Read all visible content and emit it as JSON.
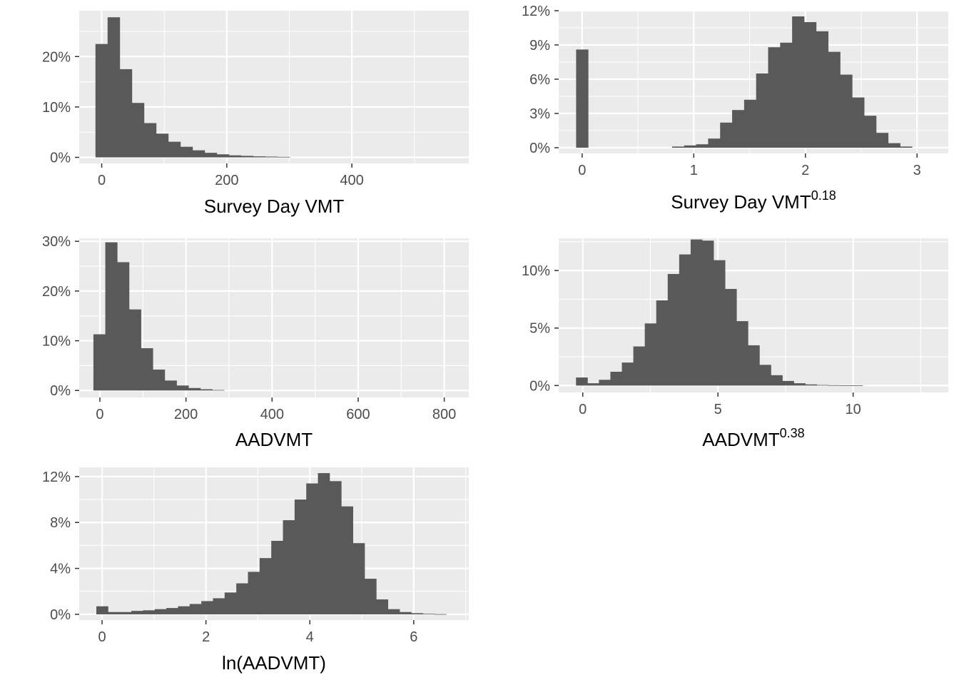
{
  "figure": {
    "panel_background": "#ebebeb",
    "grid_color": "#ffffff",
    "bar_color": "#595959",
    "tick_color": "#333333"
  },
  "chart_data": [
    {
      "type": "bar",
      "xlabel": "Survey Day VMT",
      "xlabel_sup": "",
      "xlim": [
        -36,
        587
      ],
      "ylim": [
        -0.012,
        0.291
      ],
      "xticks": [
        0,
        200,
        400
      ],
      "xtick_labels": [
        "0",
        "200",
        "400"
      ],
      "xminor": [
        100,
        300,
        500
      ],
      "yticks": [
        0,
        0.1,
        0.2
      ],
      "ytick_labels": [
        "0%",
        "10%",
        "20%"
      ],
      "yminor": [
        0.05,
        0.15,
        0.25
      ],
      "bins": {
        "start": -10,
        "width": 19.4,
        "values": [
          0.225,
          0.278,
          0.175,
          0.108,
          0.068,
          0.047,
          0.031,
          0.021,
          0.014,
          0.009,
          0.006,
          0.004,
          0.003,
          0.002,
          0.0015,
          0.001
        ]
      }
    },
    {
      "type": "bar",
      "xlabel": "Survey Day VMT",
      "xlabel_sup": "0.18",
      "xlim": [
        -0.21,
        3.28
      ],
      "ylim": [
        -0.005,
        0.12
      ],
      "xticks": [
        0,
        1,
        2,
        3
      ],
      "xtick_labels": [
        "0",
        "1",
        "2",
        "3"
      ],
      "xminor": [
        0.5,
        1.5,
        2.5
      ],
      "yticks": [
        0,
        0.03,
        0.06,
        0.09,
        0.12
      ],
      "ytick_labels": [
        "0%",
        "3%",
        "6%",
        "9%",
        "12%"
      ],
      "yminor": [
        0.015,
        0.045,
        0.075,
        0.105
      ],
      "bins": {
        "start": -0.054,
        "width": 0.1075,
        "values": [
          0.086,
          0,
          0,
          0,
          0,
          0,
          0,
          0,
          0.001,
          0.002,
          0.003,
          0.008,
          0.022,
          0.033,
          0.042,
          0.065,
          0.088,
          0.092,
          0.115,
          0.11,
          0.102,
          0.084,
          0.064,
          0.044,
          0.028,
          0.013,
          0.004,
          0.001
        ]
      }
    },
    {
      "type": "bar",
      "xlabel": "AADVMT",
      "xlabel_sup": "",
      "xlim": [
        -48,
        857
      ],
      "ylim": [
        -0.014,
        0.306
      ],
      "xticks": [
        0,
        200,
        400,
        600,
        800
      ],
      "xtick_labels": [
        "0",
        "200",
        "400",
        "600",
        "800"
      ],
      "xminor": [
        100,
        300,
        500,
        700
      ],
      "yticks": [
        0,
        0.1,
        0.2,
        0.3
      ],
      "ytick_labels": [
        "0%",
        "10%",
        "20%",
        "30%"
      ],
      "yminor": [
        0.05,
        0.15,
        0.25
      ],
      "bins": {
        "start": -15,
        "width": 27.6,
        "values": [
          0.113,
          0.298,
          0.258,
          0.163,
          0.085,
          0.042,
          0.02,
          0.01,
          0.005,
          0.0025,
          0.001
        ]
      }
    },
    {
      "type": "bar",
      "xlabel": "AADVMT",
      "xlabel_sup": "0.38",
      "xlim": [
        -0.89,
        13.52
      ],
      "ylim": [
        -0.006,
        0.128
      ],
      "xticks": [
        0,
        5,
        10
      ],
      "xtick_labels": [
        "0",
        "5",
        "10"
      ],
      "xminor": [
        2.5,
        7.5,
        12.5
      ],
      "yticks": [
        0,
        0.05,
        0.1
      ],
      "ytick_labels": [
        "0%",
        "5%",
        "10%"
      ],
      "yminor": [
        0.025,
        0.075,
        0.125
      ],
      "bins": {
        "start": -0.25,
        "width": 0.424,
        "values": [
          0.007,
          0.002,
          0.005,
          0.012,
          0.02,
          0.034,
          0.054,
          0.074,
          0.097,
          0.114,
          0.127,
          0.126,
          0.109,
          0.084,
          0.056,
          0.035,
          0.018,
          0.009,
          0.004,
          0.002,
          0.001,
          0.0005,
          0.0003,
          0.0002,
          0.0001
        ]
      }
    },
    {
      "type": "bar",
      "xlabel": "ln(AADVMT)",
      "xlabel_sup": "",
      "xlim": [
        -0.44,
        7.06
      ],
      "ylim": [
        -0.005,
        0.128
      ],
      "xticks": [
        0,
        2,
        4,
        6
      ],
      "xtick_labels": [
        "0",
        "2",
        "4",
        "6"
      ],
      "xminor": [
        1,
        3,
        5,
        7
      ],
      "yticks": [
        0,
        0.04,
        0.08,
        0.12
      ],
      "ytick_labels": [
        "0%",
        "4%",
        "8%",
        "12%"
      ],
      "yminor": [
        0.02,
        0.06,
        0.1
      ],
      "bins": {
        "start": -0.11,
        "width": 0.2245,
        "values": [
          0.007,
          0.002,
          0.002,
          0.003,
          0.0035,
          0.0045,
          0.0055,
          0.007,
          0.009,
          0.0115,
          0.014,
          0.019,
          0.027,
          0.037,
          0.049,
          0.064,
          0.082,
          0.1,
          0.114,
          0.123,
          0.116,
          0.094,
          0.062,
          0.031,
          0.013,
          0.0045,
          0.002,
          0.001,
          0.0005,
          0.0002
        ]
      }
    }
  ]
}
